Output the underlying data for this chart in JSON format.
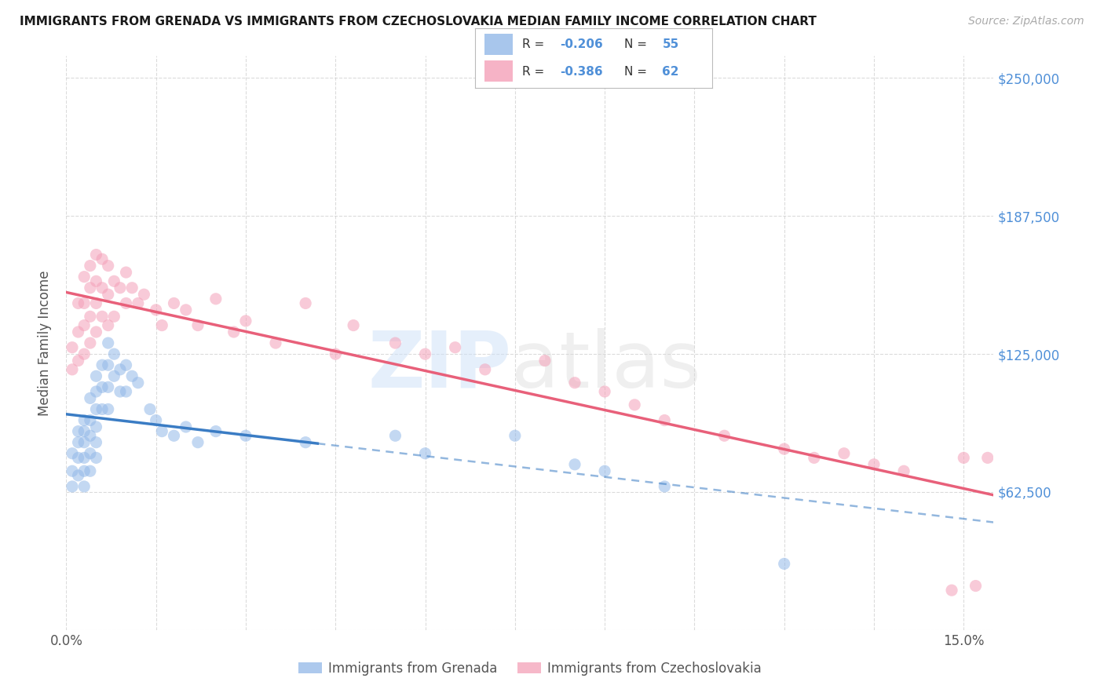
{
  "title": "IMMIGRANTS FROM GRENADA VS IMMIGRANTS FROM CZECHOSLOVAKIA MEDIAN FAMILY INCOME CORRELATION CHART",
  "source": "Source: ZipAtlas.com",
  "ylabel": "Median Family Income",
  "xlim": [
    0.0,
    0.155
  ],
  "ylim": [
    0,
    260000
  ],
  "ytick_vals": [
    0,
    62500,
    125000,
    187500,
    250000
  ],
  "ytick_labels": [
    "",
    "$62,500",
    "$125,000",
    "$187,500",
    "$250,000"
  ],
  "xtick_vals": [
    0.0,
    0.015,
    0.03,
    0.045,
    0.06,
    0.075,
    0.09,
    0.105,
    0.12,
    0.135,
    0.15
  ],
  "xtick_show": [
    0.0,
    0.15
  ],
  "bg_color": "#ffffff",
  "grid_color": "#cccccc",
  "color_grenada": "#92b8e8",
  "color_czechoslovakia": "#f4a0b8",
  "color_blue_line": "#3a7cc4",
  "color_pink_line": "#e8607a",
  "color_right_axis": "#5090d8",
  "title_color": "#1a1a1a",
  "source_color": "#aaaaaa",
  "legend_r1": "-0.206",
  "legend_n1": "55",
  "legend_r2": "-0.386",
  "legend_n2": "62",
  "grenada_x": [
    0.001,
    0.001,
    0.001,
    0.002,
    0.002,
    0.002,
    0.002,
    0.003,
    0.003,
    0.003,
    0.003,
    0.003,
    0.003,
    0.004,
    0.004,
    0.004,
    0.004,
    0.004,
    0.005,
    0.005,
    0.005,
    0.005,
    0.005,
    0.005,
    0.006,
    0.006,
    0.006,
    0.007,
    0.007,
    0.007,
    0.007,
    0.008,
    0.008,
    0.009,
    0.009,
    0.01,
    0.01,
    0.011,
    0.012,
    0.014,
    0.015,
    0.016,
    0.018,
    0.02,
    0.022,
    0.025,
    0.03,
    0.04,
    0.055,
    0.06,
    0.075,
    0.085,
    0.09,
    0.1,
    0.12
  ],
  "grenada_y": [
    80000,
    72000,
    65000,
    90000,
    85000,
    78000,
    70000,
    95000,
    90000,
    85000,
    78000,
    72000,
    65000,
    105000,
    95000,
    88000,
    80000,
    72000,
    115000,
    108000,
    100000,
    92000,
    85000,
    78000,
    120000,
    110000,
    100000,
    130000,
    120000,
    110000,
    100000,
    125000,
    115000,
    118000,
    108000,
    120000,
    108000,
    115000,
    112000,
    100000,
    95000,
    90000,
    88000,
    92000,
    85000,
    90000,
    88000,
    85000,
    88000,
    80000,
    88000,
    75000,
    72000,
    65000,
    30000
  ],
  "czechoslovakia_x": [
    0.001,
    0.001,
    0.002,
    0.002,
    0.002,
    0.003,
    0.003,
    0.003,
    0.003,
    0.004,
    0.004,
    0.004,
    0.004,
    0.005,
    0.005,
    0.005,
    0.005,
    0.006,
    0.006,
    0.006,
    0.007,
    0.007,
    0.007,
    0.008,
    0.008,
    0.009,
    0.01,
    0.01,
    0.011,
    0.012,
    0.013,
    0.015,
    0.016,
    0.018,
    0.02,
    0.022,
    0.025,
    0.028,
    0.03,
    0.035,
    0.04,
    0.045,
    0.048,
    0.055,
    0.06,
    0.065,
    0.07,
    0.08,
    0.085,
    0.09,
    0.095,
    0.1,
    0.11,
    0.12,
    0.125,
    0.13,
    0.135,
    0.14,
    0.148,
    0.15,
    0.152,
    0.154
  ],
  "czechoslovakia_y": [
    128000,
    118000,
    148000,
    135000,
    122000,
    160000,
    148000,
    138000,
    125000,
    165000,
    155000,
    142000,
    130000,
    170000,
    158000,
    148000,
    135000,
    168000,
    155000,
    142000,
    165000,
    152000,
    138000,
    158000,
    142000,
    155000,
    162000,
    148000,
    155000,
    148000,
    152000,
    145000,
    138000,
    148000,
    145000,
    138000,
    150000,
    135000,
    140000,
    130000,
    148000,
    125000,
    138000,
    130000,
    125000,
    128000,
    118000,
    122000,
    112000,
    108000,
    102000,
    95000,
    88000,
    82000,
    78000,
    80000,
    75000,
    72000,
    18000,
    78000,
    20000,
    78000
  ],
  "blue_line_x_start": 0.0,
  "blue_line_x_solid_end": 0.042,
  "blue_line_x_dash_end": 0.155,
  "pink_line_x_start": 0.0,
  "pink_line_x_end": 0.155
}
